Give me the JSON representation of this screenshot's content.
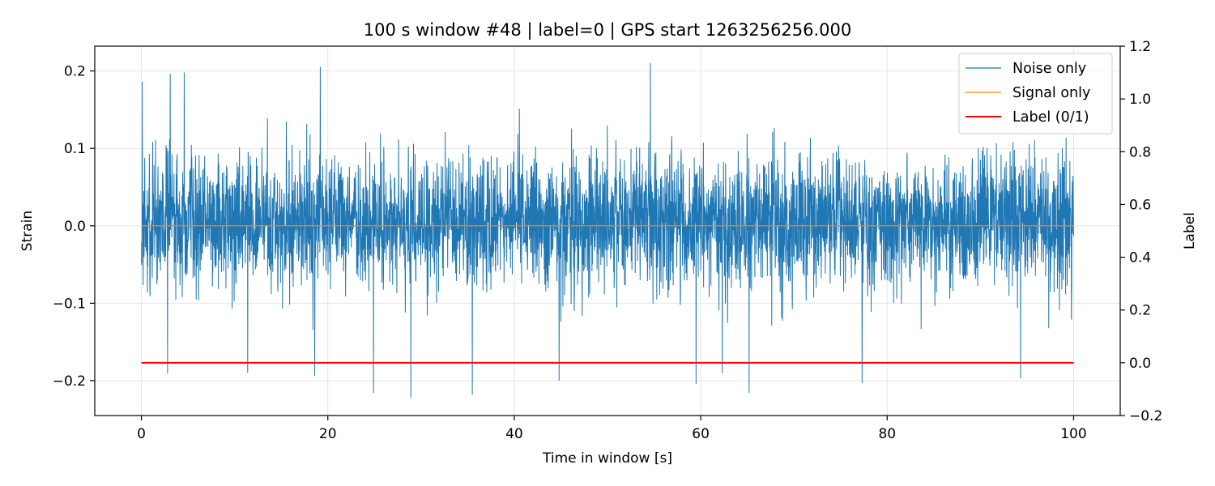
{
  "chart_data": {
    "type": "line",
    "title": "100 s window #48 | label=0 | GPS start 1263256256.000",
    "xlabel": "Time in window [s]",
    "ylabel": "Strain",
    "y2label": "Label",
    "xlim": [
      -5,
      105
    ],
    "ylim": [
      -0.245,
      0.232
    ],
    "y2lim": [
      -0.2,
      1.2
    ],
    "xticks": [
      0,
      20,
      40,
      60,
      80,
      100
    ],
    "xtick_labels": [
      "0",
      "20",
      "40",
      "60",
      "80",
      "100"
    ],
    "yticks": [
      -0.2,
      -0.1,
      0.0,
      0.1,
      0.2
    ],
    "ytick_labels": [
      "−0.2",
      "−0.1",
      "0.0",
      "0.1",
      "0.2"
    ],
    "y2ticks": [
      -0.2,
      0.0,
      0.2,
      0.4,
      0.6,
      0.8,
      1.0,
      1.2
    ],
    "y2tick_labels": [
      "−0.2",
      "0.0",
      "0.2",
      "0.4",
      "0.6",
      "0.8",
      "1.0",
      "1.2"
    ],
    "grid": true,
    "legend_position": "top-right",
    "series": [
      {
        "name": "Noise only",
        "axis": "left",
        "color": "#1f77b4",
        "style": "dense-noise",
        "x_range": [
          0,
          100
        ],
        "typical_envelope": [
          -0.09,
          0.1
        ],
        "min": -0.222,
        "max": 0.21,
        "notable_peaks": [
          {
            "x": 0.1,
            "y": 0.186
          },
          {
            "x": 3.1,
            "y": 0.196
          },
          {
            "x": 4.6,
            "y": 0.198
          },
          {
            "x": 19.2,
            "y": 0.205
          },
          {
            "x": 54.6,
            "y": 0.21
          },
          {
            "x": 2.8,
            "y": -0.191
          },
          {
            "x": 11.4,
            "y": -0.19
          },
          {
            "x": 18.6,
            "y": -0.194
          },
          {
            "x": 24.9,
            "y": -0.216
          },
          {
            "x": 28.9,
            "y": -0.222
          },
          {
            "x": 35.5,
            "y": -0.218
          },
          {
            "x": 44.8,
            "y": -0.2
          },
          {
            "x": 59.5,
            "y": -0.204
          },
          {
            "x": 62.3,
            "y": -0.19
          },
          {
            "x": 65.2,
            "y": -0.216
          },
          {
            "x": 77.3,
            "y": -0.203
          },
          {
            "x": 94.3,
            "y": -0.197
          }
        ]
      },
      {
        "name": "Signal only",
        "axis": "left",
        "color": "#ff7f0e",
        "x": [
          0,
          100
        ],
        "values": [
          0.0,
          0.0
        ]
      },
      {
        "name": "Label (0/1)",
        "axis": "right",
        "color": "#ff0000",
        "x": [
          0,
          100
        ],
        "values": [
          0,
          0
        ]
      }
    ]
  }
}
